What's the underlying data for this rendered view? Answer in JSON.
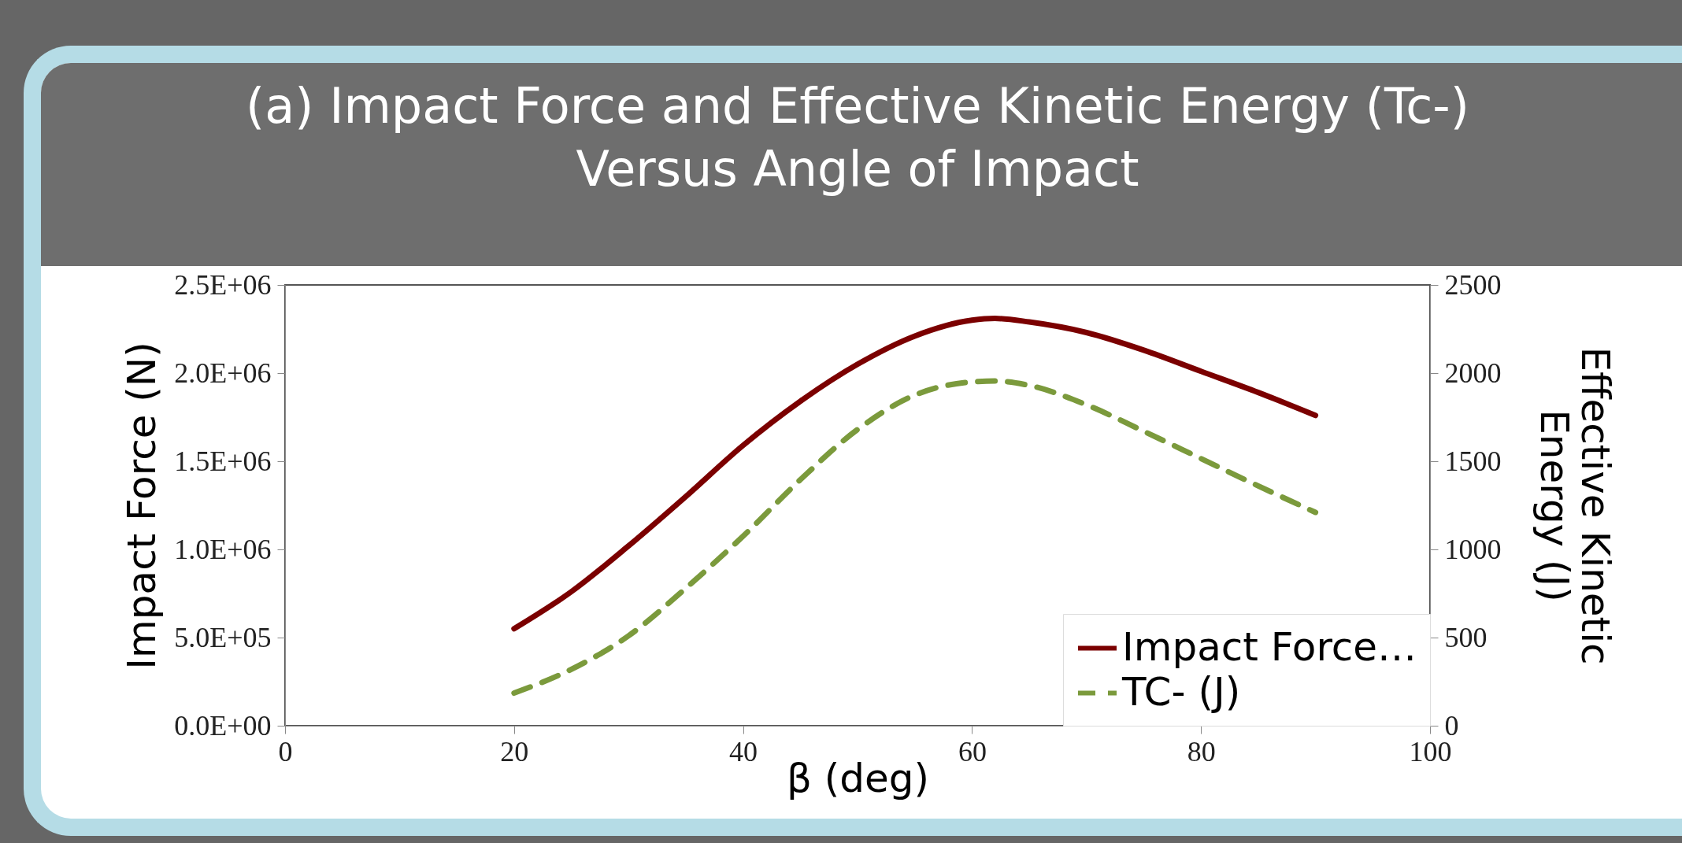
{
  "chart_data": {
    "type": "line",
    "title": "(a) Impact Force and Effective Kinetic Energy (Tc-) Versus Angle of Impact",
    "xlabel": "β (deg)",
    "ylabel": "Impact Force (N)",
    "y2label": "Effective Kinetic Energy (J)",
    "x": [
      20,
      25,
      30,
      35,
      40,
      45,
      50,
      55,
      60,
      62,
      65,
      70,
      75,
      80,
      85,
      90
    ],
    "series": [
      {
        "name": "Impact Force…",
        "color": "#7b0000",
        "line_style": "solid",
        "values": [
          550000,
          760000,
          1020000,
          1300000,
          1590000,
          1840000,
          2050000,
          2210000,
          2300000,
          2310000,
          2290000,
          2230000,
          2130000,
          2010000,
          1890000,
          1760000
        ]
      },
      {
        "name": "TC- (J)",
        "color": "#7b9a3c",
        "line_style": "dashed",
        "axis": "y2",
        "values": [
          185,
          320,
          510,
          780,
          1075,
          1395,
          1680,
          1875,
          1950,
          1955,
          1930,
          1820,
          1670,
          1515,
          1360,
          1210
        ]
      }
    ],
    "xlim": [
      0,
      100
    ],
    "xticks": [
      0,
      20,
      40,
      60,
      80,
      100
    ],
    "ylim": [
      0,
      2500000
    ],
    "yticks": [
      {
        "value": 0,
        "label": "0.0E+00"
      },
      {
        "value": 500000,
        "label": "5.0E+05"
      },
      {
        "value": 1000000,
        "label": "1.0E+06"
      },
      {
        "value": 1500000,
        "label": "1.5E+06"
      },
      {
        "value": 2000000,
        "label": "2.0E+06"
      },
      {
        "value": 2500000,
        "label": "2.5E+06"
      }
    ],
    "y2lim": [
      0,
      2500
    ],
    "y2ticks": [
      0,
      500,
      1000,
      1500,
      2000,
      2500
    ],
    "legend": "bottom right",
    "grid": false
  }
}
